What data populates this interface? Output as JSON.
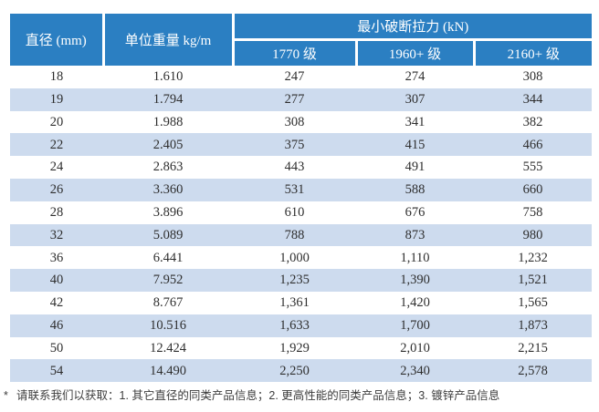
{
  "table": {
    "header": {
      "diameter": "直径 (mm)",
      "unit_weight": "单位重量 kg/m",
      "breaking_force_group": "最小破断拉力 (kN)",
      "grades": [
        "1770 级",
        "1960+ 级",
        "2160+ 级"
      ]
    },
    "rows": [
      [
        "18",
        "1.610",
        "247",
        "274",
        "308"
      ],
      [
        "19",
        "1.794",
        "277",
        "307",
        "344"
      ],
      [
        "20",
        "1.988",
        "308",
        "341",
        "382"
      ],
      [
        "22",
        "2.405",
        "375",
        "415",
        "466"
      ],
      [
        "24",
        "2.863",
        "443",
        "491",
        "555"
      ],
      [
        "26",
        "3.360",
        "531",
        "588",
        "660"
      ],
      [
        "28",
        "3.896",
        "610",
        "676",
        "758"
      ],
      [
        "32",
        "5.089",
        "788",
        "873",
        "980"
      ],
      [
        "36",
        "6.441",
        "1,000",
        "1,110",
        "1,232"
      ],
      [
        "40",
        "7.952",
        "1,235",
        "1,390",
        "1,521"
      ],
      [
        "42",
        "8.767",
        "1,361",
        "1,420",
        "1,565"
      ],
      [
        "46",
        "10.516",
        "1,633",
        "1,700",
        "1,873"
      ],
      [
        "50",
        "12.424",
        "1,929",
        "2,010",
        "2,215"
      ],
      [
        "54",
        "14.490",
        "2,250",
        "2,340",
        "2,578"
      ]
    ]
  },
  "footnote": {
    "marker": "*",
    "text": "请联系我们以获取：1. 其它直径的同类产品信息；2. 更高性能的同类产品信息；3. 镀锌产品信息"
  },
  "colors": {
    "header_bg": "#2b7fc2",
    "header_text": "#ffffff",
    "row_alt_bg": "#cddbee",
    "body_text": "#2e2e2e"
  }
}
